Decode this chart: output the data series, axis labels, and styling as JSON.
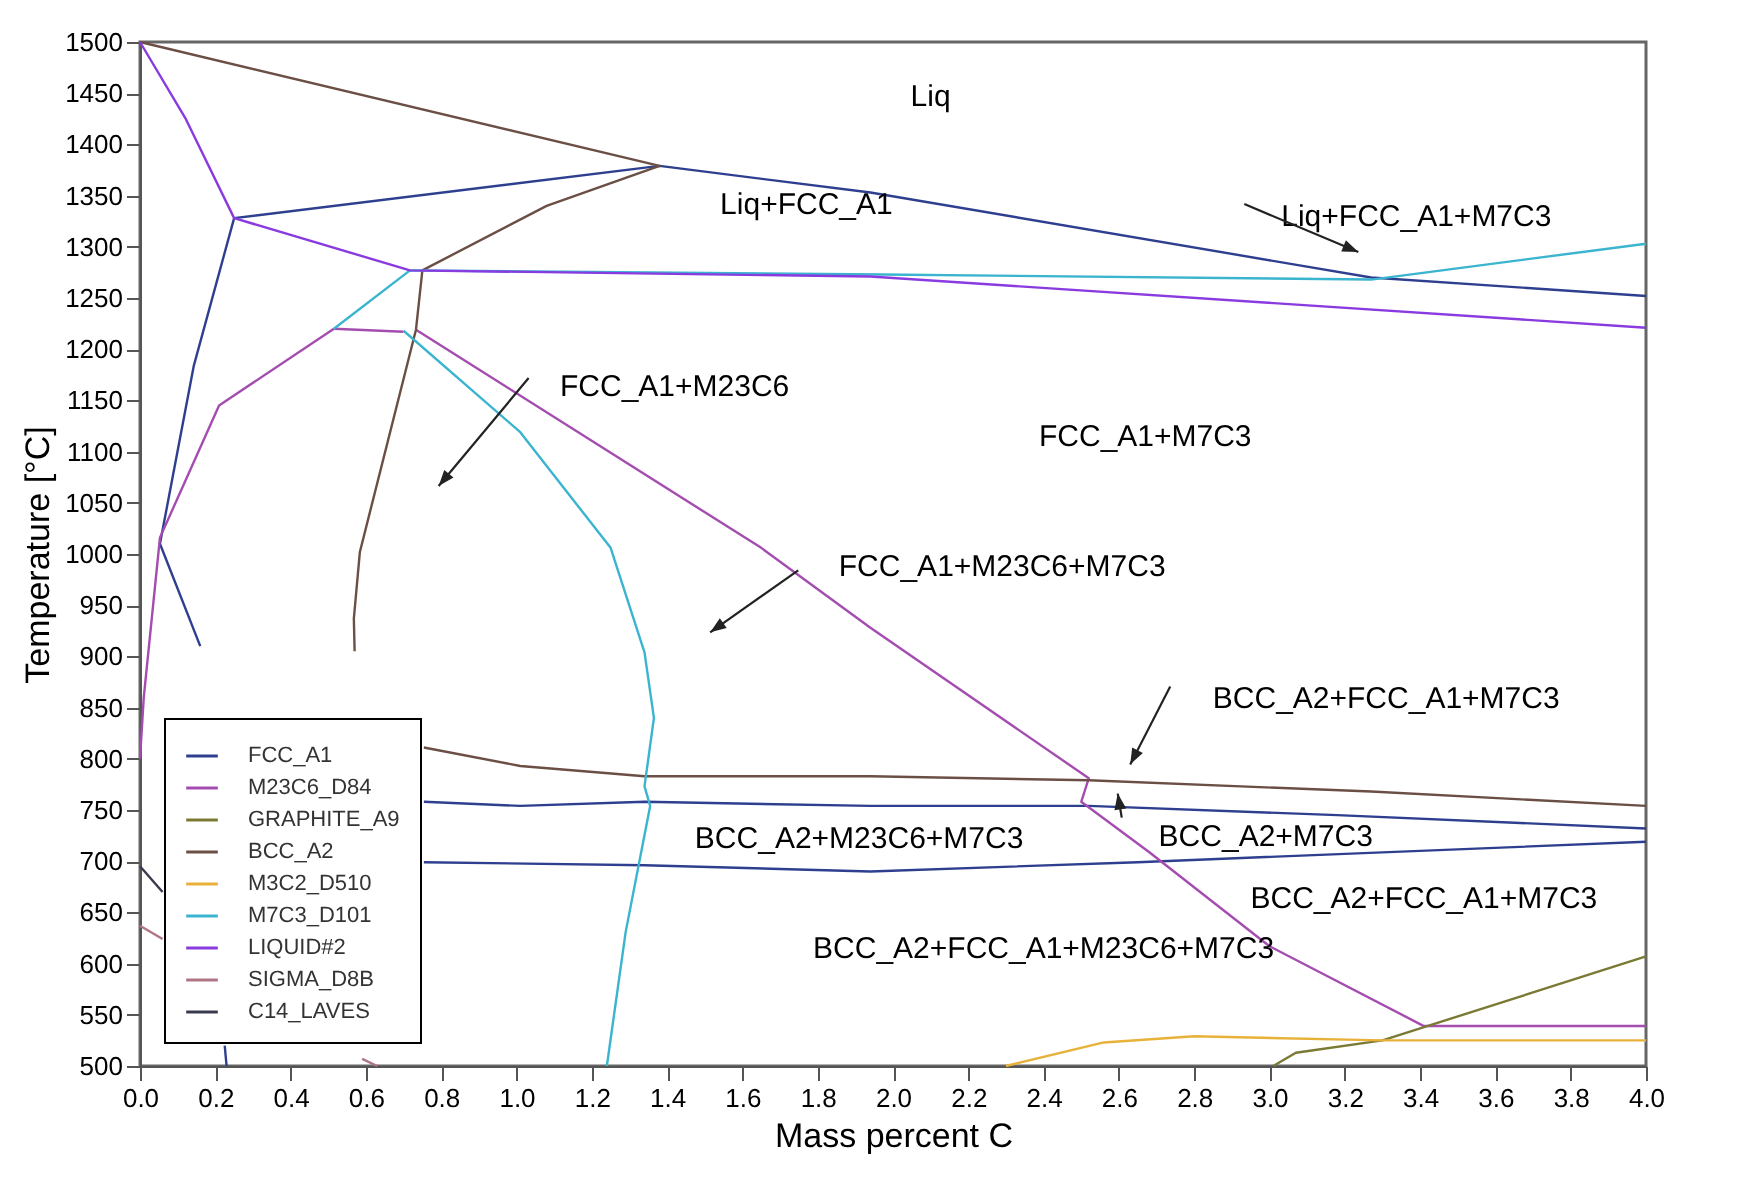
{
  "chart_data": {
    "type": "line",
    "xlabel": "Mass percent C",
    "ylabel": "Temperature [°C]",
    "xlim": [
      0,
      4
    ],
    "ylim": [
      500,
      1500
    ],
    "xticks": [
      {
        "value": 0,
        "label": "0.0"
      },
      0.2,
      0.4,
      0.6,
      0.8,
      {
        "value": 1,
        "label": "1.0"
      },
      1.2,
      1.4,
      1.6,
      1.8,
      {
        "value": 2,
        "label": "2.0"
      },
      2.2,
      2.4,
      2.6,
      2.8,
      {
        "value": 3,
        "label": "3.0"
      },
      3.2,
      3.4,
      3.6,
      3.8,
      {
        "value": 4,
        "label": "4.0"
      }
    ],
    "yticks": [
      500,
      550,
      600,
      650,
      700,
      750,
      800,
      850,
      900,
      950,
      1000,
      1050,
      1100,
      1150,
      1200,
      1250,
      1300,
      1350,
      1400,
      1450,
      1500
    ],
    "grid": false,
    "legend": "bottom left",
    "marker": "none",
    "line_style": "solid",
    "series": [
      {
        "name": "FCC_A1",
        "color": "#2e3f8f",
        "x": [
          0.25,
          1.38,
          1.94,
          3.27,
          4.0,
          null,
          0.25,
          0.143,
          0.053,
          0.16,
          null,
          0.225,
          0.23,
          null,
          0.754,
          1.01,
          1.34,
          1.94,
          2.52,
          3.18,
          4.0,
          null,
          0.754,
          1.34,
          1.94,
          2.65,
          4.0
        ],
        "values": [
          1328,
          1379,
          1353,
          1270,
          1252,
          null,
          1328,
          1184,
          1010,
          910,
          null,
          520,
          500,
          null,
          758,
          754,
          758,
          754,
          754,
          745,
          732,
          null,
          699,
          696,
          690,
          699,
          719
        ]
      },
      {
        "name": "M23C6_D84",
        "color": "#a44cb0",
        "x": [
          0.515,
          0.21,
          0.053,
          0.01,
          0.0,
          null,
          0.515,
          0.7,
          null,
          0.733,
          1.65,
          1.94,
          2.52,
          2.5,
          2.68,
          3.0,
          3.41,
          4.0
        ],
        "values": [
          1220,
          1145,
          1016,
          860,
          800,
          null,
          1220,
          1217,
          null,
          1219,
          1006,
          928,
          781,
          758,
          709,
          617,
          539,
          539
        ]
      },
      {
        "name": "GRAPHITE_A9",
        "color": "#7b7a35",
        "x": [
          3.01,
          3.07,
          3.3,
          4.0
        ],
        "values": [
          500,
          513,
          525,
          607
        ]
      },
      {
        "name": "BCC_A2",
        "color": "#6b4f45",
        "x": [
          0,
          1.38,
          1.08,
          0.75,
          0.733,
          0.584,
          0.568,
          0.57,
          null,
          0.754,
          1.01,
          1.34,
          1.94,
          2.52,
          3.27,
          4.0
        ],
        "values": [
          1500,
          1379,
          1340,
          1277,
          1219,
          1002,
          937,
          905,
          null,
          811,
          793,
          783,
          783,
          779,
          768,
          754
        ]
      },
      {
        "name": "M3C2_D510",
        "color": "#e8b23a",
        "x": [
          2.3,
          2.56,
          2.8,
          3.3,
          4.0
        ],
        "values": [
          500,
          523,
          529,
          525,
          525
        ]
      },
      {
        "name": "M7C3_D101",
        "color": "#3ab4cf",
        "x": [
          0.515,
          0.717,
          1.97,
          3.27,
          4.0,
          null,
          0.7,
          1.01,
          1.25,
          1.34,
          1.365,
          1.34,
          1.355,
          1.29,
          1.24
        ],
        "values": [
          1220,
          1277,
          1273,
          1268,
          1303,
          null,
          1218,
          1119,
          1006,
          904,
          840,
          773,
          754,
          631,
          500
        ]
      },
      {
        "name": "LIQUID#2",
        "color": "#8a3be0",
        "x": [
          0,
          0.12,
          0.25,
          0.717,
          1.94,
          4.0
        ],
        "values": [
          1500,
          1426,
          1328,
          1277,
          1271,
          1221
        ]
      },
      {
        "name": "SIGMA_D8B",
        "color": "#b07585",
        "x": [
          0,
          0.06,
          null,
          0.59,
          0.63
        ],
        "values": [
          637,
          624,
          null,
          507,
          500
        ]
      },
      {
        "name": "C14_LAVES",
        "color": "#3a3a4e",
        "x": [
          0,
          0.06
        ],
        "values": [
          695,
          670
        ]
      }
    ],
    "annotations": [
      "Liq",
      "Liq+FCC_A1",
      "Liq+FCC_A1+M7C3",
      "FCC_A1+M23C6",
      "FCC_A1+M7C3",
      "FCC_A1+M23C6+M7C3",
      "BCC_A2+FCC_A1+M7C3",
      "BCC_A2+M23C6+M7C3",
      "BCC_A2+M7C3",
      "BCC_A2+FCC_A1+M7C3",
      "BCC_A2+FCC_A1+M23C6+M7C3"
    ]
  }
}
